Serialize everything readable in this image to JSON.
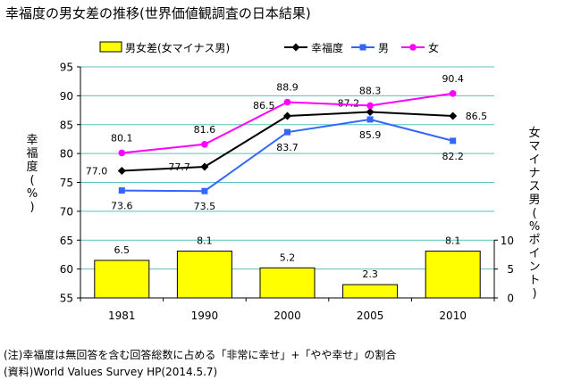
{
  "title": "幸福度の男女差の推移(世界価値観調査の日本結果)",
  "notes": [
    "(注)幸福度は無回答を含む回答総数に占める「非常に幸せ」+「やや幸せ」の割合",
    "(資料)World Values Survey HP(2014.5.7)"
  ],
  "colors": {
    "gap_bar": "#ffff00",
    "gap_bar_border": "#000000",
    "happiness": "#000000",
    "men": "#3366ff",
    "women": "#ff00ff",
    "gridline": "#5bbfbf"
  },
  "chart_data": {
    "type": "bar+line",
    "categories": [
      "1981",
      "1990",
      "2000",
      "2005",
      "2010"
    ],
    "ylabel": "幸福度(%)",
    "y2label": "女マイナス男(%ポイント)",
    "ylim": [
      55,
      95
    ],
    "y_ticks": [
      55,
      60,
      65,
      70,
      75,
      80,
      85,
      90,
      95
    ],
    "y2lim": [
      0,
      10
    ],
    "y2_ticks": [
      0,
      5,
      10
    ],
    "grid": "horizontal",
    "legend_position": "top",
    "bars": {
      "name": "男女差(女マイナス男)",
      "axis": "right",
      "values": [
        6.5,
        8.1,
        5.2,
        2.3,
        8.1
      ]
    },
    "series": [
      {
        "name": "幸福度",
        "marker": "diamond",
        "color": "#000000",
        "values": [
          77.0,
          77.7,
          86.5,
          87.2,
          86.5
        ]
      },
      {
        "name": "男",
        "marker": "square",
        "color": "#3366ff",
        "values": [
          73.6,
          73.5,
          83.7,
          85.9,
          82.2
        ]
      },
      {
        "name": "女",
        "marker": "circle",
        "color": "#ff00ff",
        "values": [
          80.1,
          81.6,
          88.9,
          88.3,
          90.4
        ]
      }
    ],
    "data_labels": {
      "bars": [
        "6.5",
        "8.1",
        "5.2",
        "2.3",
        "8.1"
      ],
      "幸福度": [
        "77.0",
        "77.7",
        "86.5",
        "87.2",
        "86.5"
      ],
      "男": [
        "73.6",
        "73.5",
        "83.7",
        "85.9",
        "82.2"
      ],
      "女": [
        "80.1",
        "81.6",
        "88.9",
        "88.3",
        "90.4"
      ]
    }
  }
}
